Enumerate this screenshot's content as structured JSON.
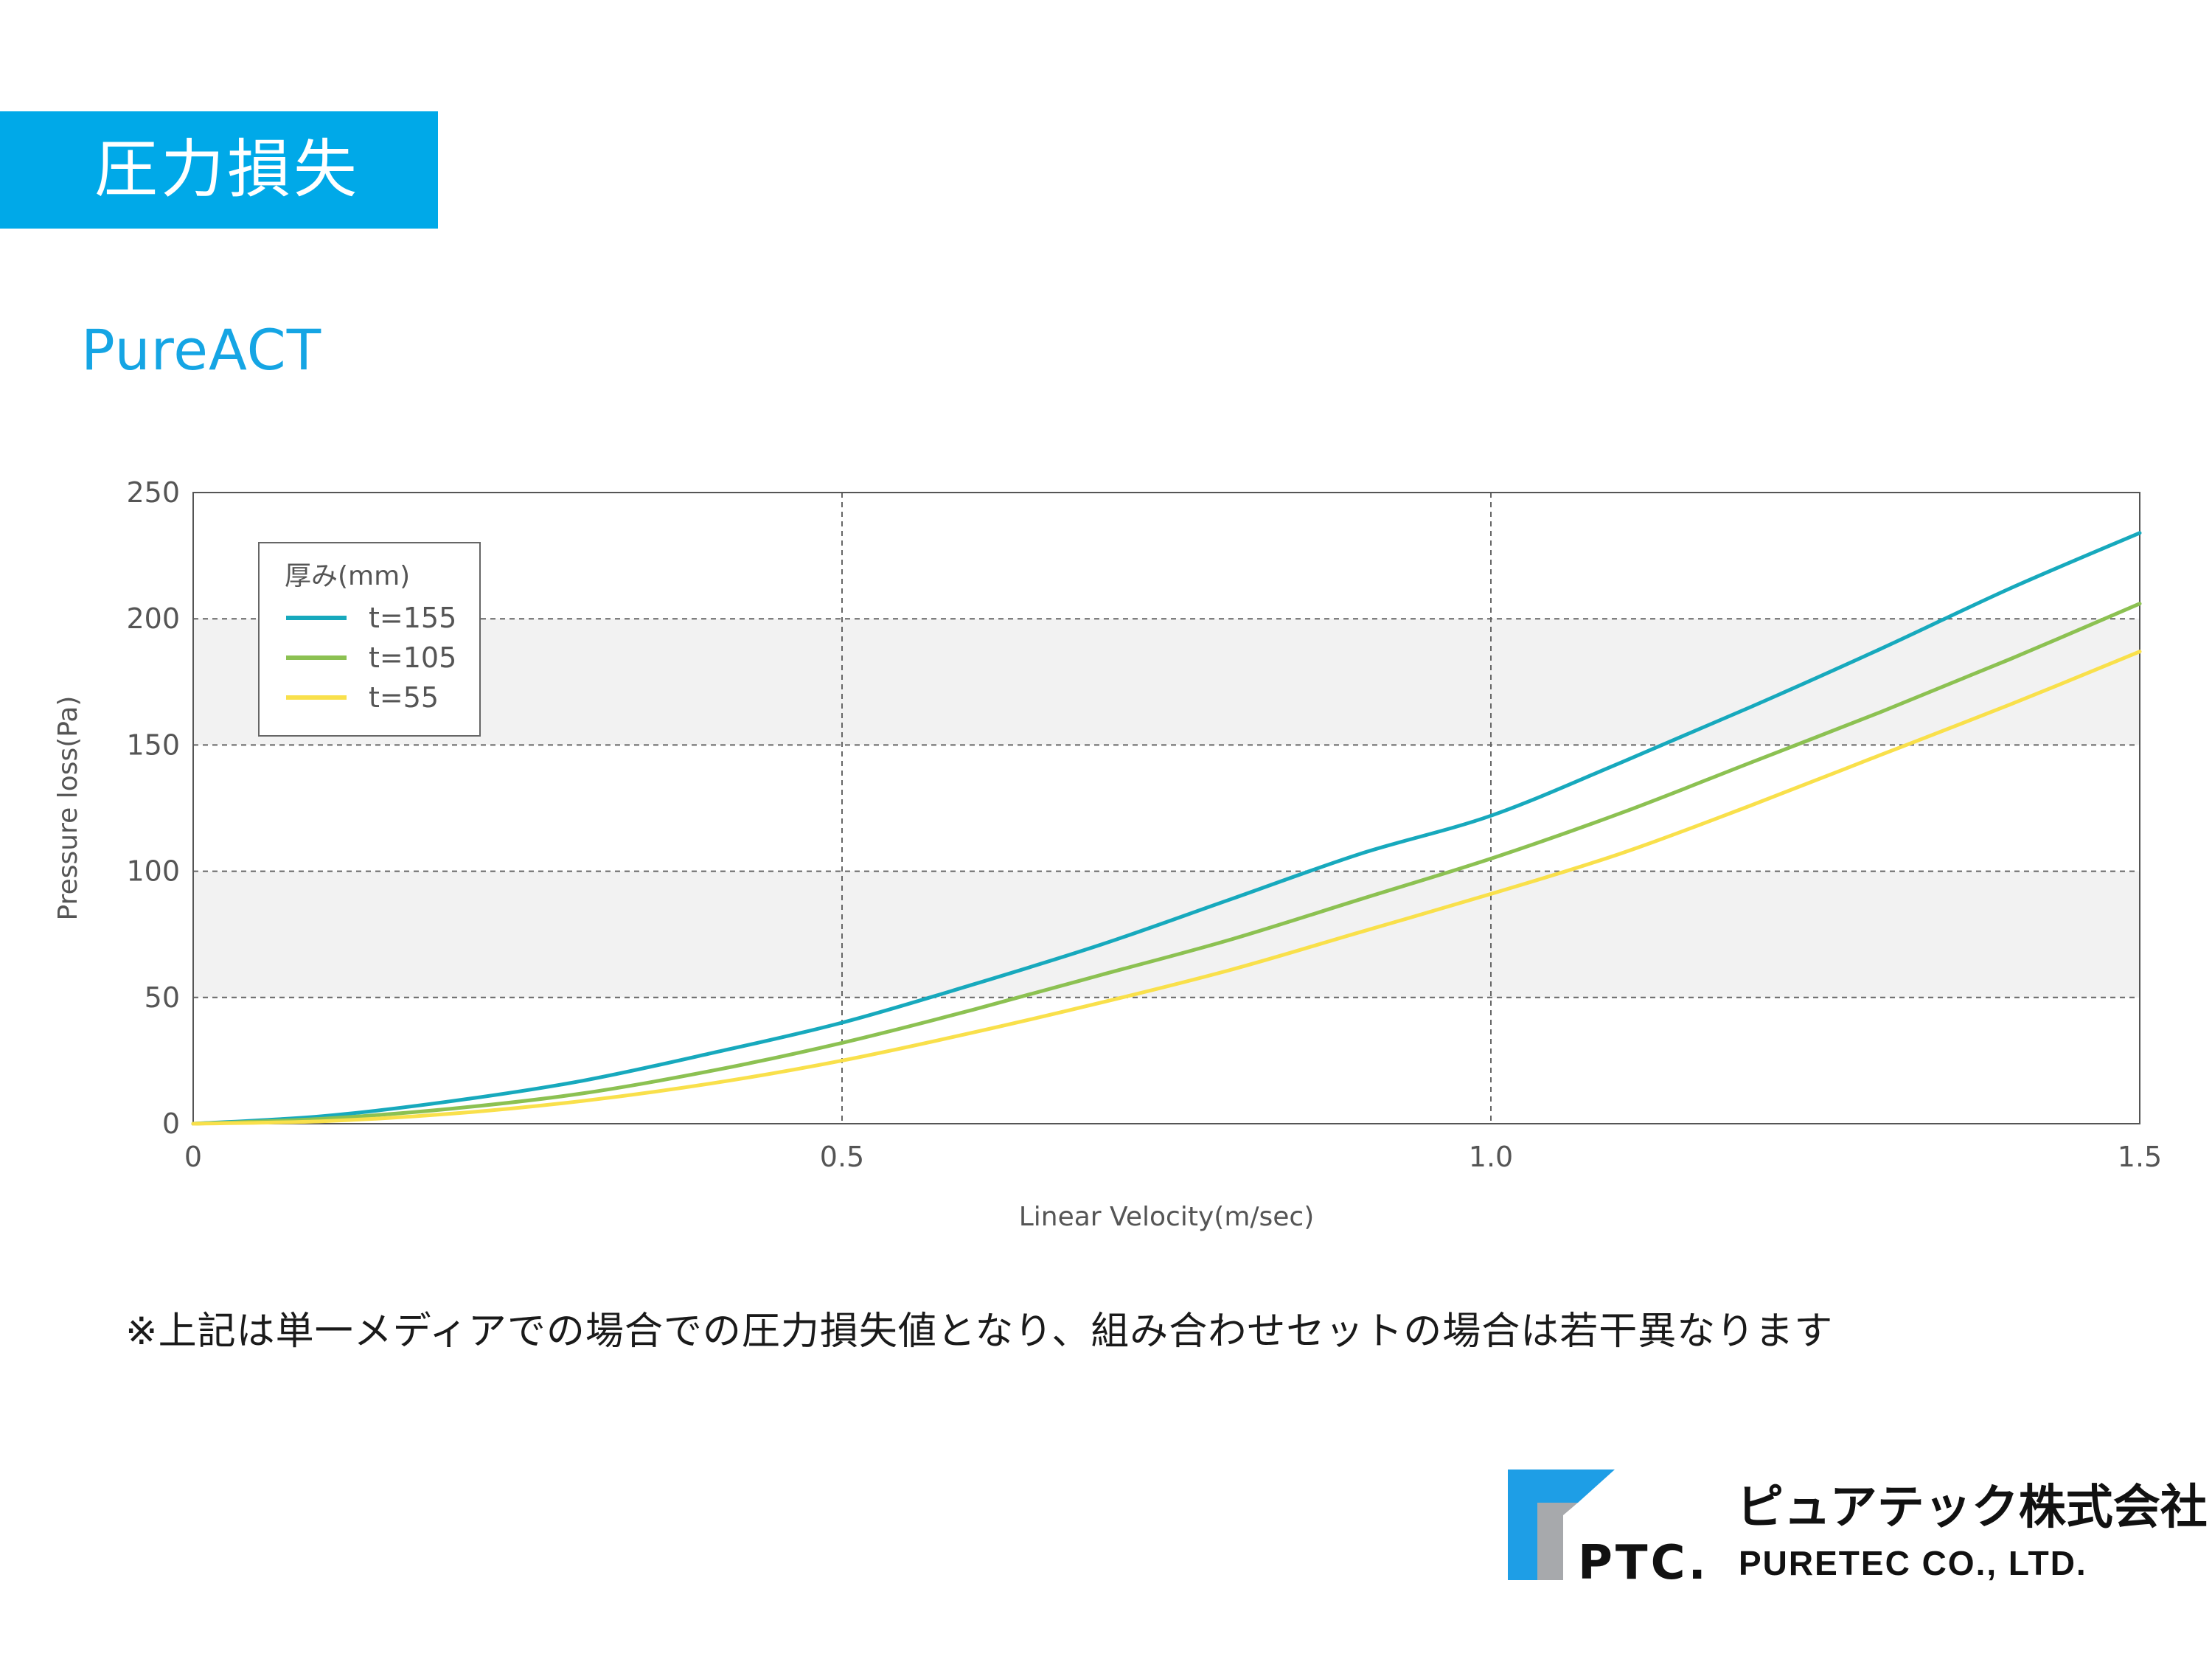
{
  "header": {
    "title": "圧力損失"
  },
  "product_name": "PureACT",
  "chart_data": {
    "type": "line",
    "title": "",
    "xlabel": "Linear Velocity(m/sec)",
    "ylabel": "Pressure loss(Pa)",
    "xlim": [
      0,
      1.5
    ],
    "ylim": [
      0,
      250
    ],
    "xticks": [
      0,
      0.5,
      1.0,
      1.5
    ],
    "xtick_labels": [
      "0",
      "0.5",
      "1.0",
      "1.5"
    ],
    "yticks": [
      0,
      50,
      100,
      150,
      200,
      250
    ],
    "ytick_labels": [
      "0",
      "50",
      "100",
      "150",
      "200",
      "250"
    ],
    "grid": "dashed, with alternating light-gray bands",
    "legend_title": "厚み(mm)",
    "legend_position": "top-left",
    "series": [
      {
        "name": "t=155",
        "color": "#17a9bd",
        "x": [
          0,
          0.1,
          0.2,
          0.3,
          0.4,
          0.5,
          0.6,
          0.7,
          0.8,
          0.9,
          1.0,
          1.1,
          1.2,
          1.3,
          1.4,
          1.5
        ],
        "y": [
          0,
          3,
          9,
          17,
          28,
          40,
          55,
          71,
          89,
          107,
          122,
          143,
          165,
          188,
          212,
          234
        ]
      },
      {
        "name": "t=105",
        "color": "#8cc152",
        "x": [
          0,
          0.1,
          0.2,
          0.3,
          0.4,
          0.5,
          0.6,
          0.7,
          0.8,
          0.9,
          1.0,
          1.1,
          1.2,
          1.3,
          1.4,
          1.5
        ],
        "y": [
          0,
          2,
          6,
          12,
          21,
          32,
          45,
          59,
          73,
          89,
          105,
          123,
          143,
          163,
          184,
          206
        ]
      },
      {
        "name": "t=55",
        "color": "#f9e04b",
        "x": [
          0,
          0.1,
          0.2,
          0.3,
          0.4,
          0.5,
          0.6,
          0.7,
          0.8,
          0.9,
          1.0,
          1.1,
          1.2,
          1.3,
          1.4,
          1.5
        ],
        "y": [
          0,
          1,
          4,
          9,
          16,
          25,
          36,
          48,
          61,
          76,
          91,
          107,
          126,
          146,
          166,
          187
        ]
      }
    ]
  },
  "footnote": "※上記は単一メディアでの場合での圧力損失値となり、組み合わせセットの場合は若干異なります",
  "company": {
    "logo_text": "PTC.",
    "name_jp": "ピュアテック株式会社",
    "name_en": "PURETEC CO., LTD."
  },
  "colors": {
    "accent": "#00a9e8",
    "logo_blue": "#1e9ee6",
    "logo_gray": "#a7a9ac"
  }
}
